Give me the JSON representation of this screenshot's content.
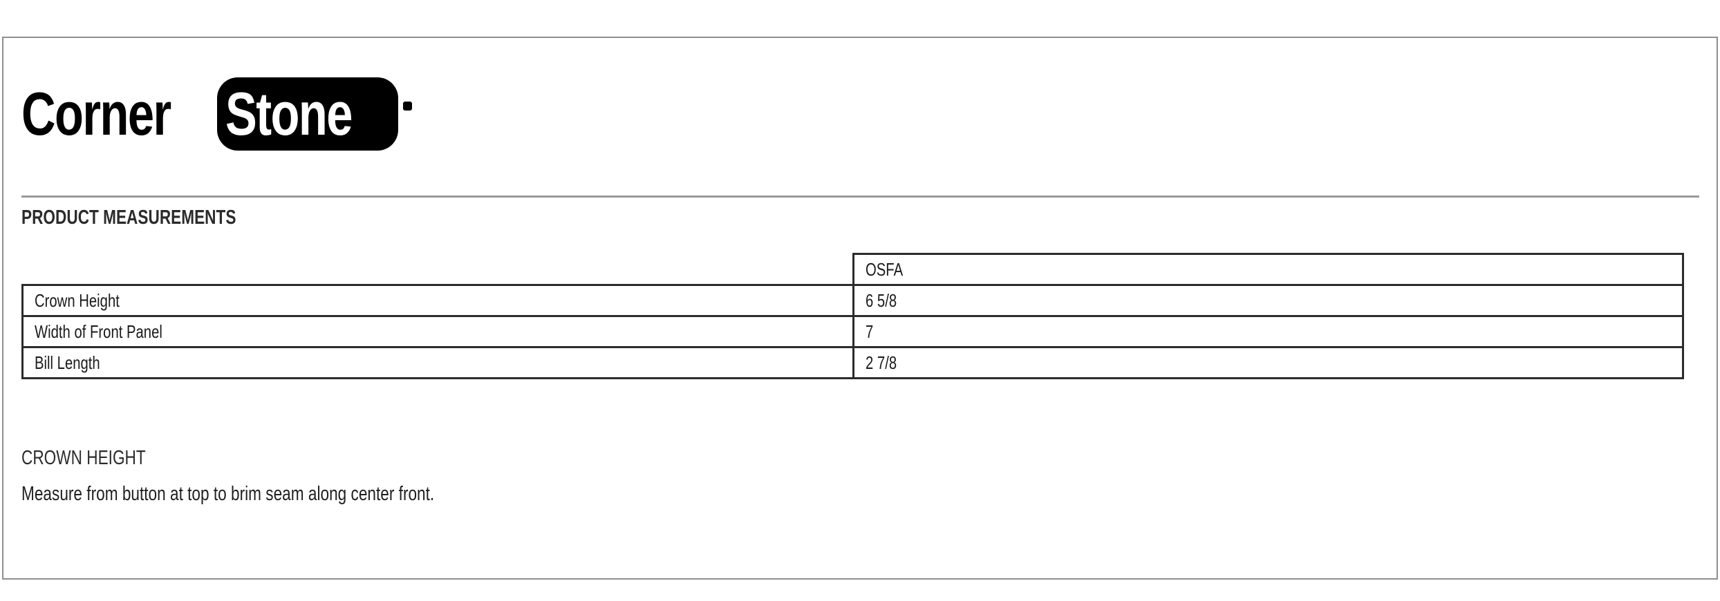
{
  "page": {
    "background_color": "#ffffff",
    "frame_border_color": "#8f8f8f"
  },
  "logo": {
    "brand_prefix": "Corner",
    "brand_suffix": "Stone",
    "registered_mark": "registered-trademark-dot",
    "text_color": "#000000",
    "box_color": "#000000",
    "box_text_color": "#ffffff"
  },
  "section": {
    "title": "PRODUCT MEASUREMENTS"
  },
  "measurements_table": {
    "size_column_header": "OSFA",
    "rows": [
      {
        "label": "Crown Height",
        "value": "6 5/8"
      },
      {
        "label": "Width of Front Panel",
        "value": "7"
      },
      {
        "label": "Bill Length",
        "value": "2 7/8"
      }
    ],
    "border_color": "#2b2b2b"
  },
  "detail": {
    "heading": "CROWN HEIGHT",
    "description": "Measure from button at top to brim seam along center front."
  },
  "colors": {
    "separator": "#9a9a9a",
    "body_text": "#1f1f1f"
  }
}
